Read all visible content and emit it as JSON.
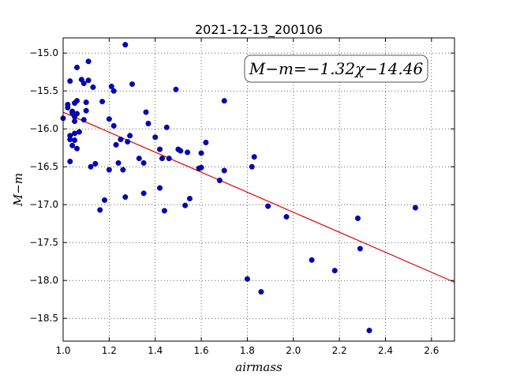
{
  "chart_data": {
    "type": "scatter",
    "title": "2021-12-13_200106",
    "xlabel": "airmass",
    "ylabel": "M−m",
    "xlim": [
      1.0,
      2.7
    ],
    "ylim": [
      -18.8,
      -14.8
    ],
    "xticks": [
      1.0,
      1.2,
      1.4,
      1.6,
      1.8,
      2.0,
      2.2,
      2.4,
      2.6
    ],
    "xtick_labels": [
      "1.0",
      "1.2",
      "1.4",
      "1.6",
      "1.8",
      "2.0",
      "2.2",
      "2.4",
      "2.6"
    ],
    "yticks": [
      -15.0,
      -15.5,
      -16.0,
      -16.5,
      -17.0,
      -17.5,
      -18.0,
      -18.5
    ],
    "ytick_labels": [
      "−15.0",
      "−15.5",
      "−16.0",
      "−16.5",
      "−17.0",
      "−17.5",
      "−18.0",
      "−18.5"
    ],
    "grid": true,
    "annotation": "M−m=−1.32χ−14.46",
    "colors": {
      "points": "#0000cc",
      "fit": "#dd0000"
    },
    "fit": {
      "slope": -1.32,
      "intercept": -14.46
    },
    "points": [
      [
        1.0,
        -15.86
      ],
      [
        1.02,
        -15.72
      ],
      [
        1.02,
        -15.68
      ],
      [
        1.03,
        -15.37
      ],
      [
        1.03,
        -16.09
      ],
      [
        1.03,
        -16.14
      ],
      [
        1.03,
        -16.43
      ],
      [
        1.04,
        -15.77
      ],
      [
        1.04,
        -15.79
      ],
      [
        1.04,
        -16.22
      ],
      [
        1.05,
        -15.66
      ],
      [
        1.05,
        -15.84
      ],
      [
        1.05,
        -15.9
      ],
      [
        1.05,
        -16.06
      ],
      [
        1.05,
        -16.15
      ],
      [
        1.06,
        -15.19
      ],
      [
        1.06,
        -15.63
      ],
      [
        1.06,
        -15.8
      ],
      [
        1.06,
        -16.26
      ],
      [
        1.07,
        -16.04
      ],
      [
        1.08,
        -15.35
      ],
      [
        1.09,
        -15.4
      ],
      [
        1.09,
        -15.88
      ],
      [
        1.1,
        -15.65
      ],
      [
        1.1,
        -15.76
      ],
      [
        1.11,
        -15.11
      ],
      [
        1.11,
        -15.36
      ],
      [
        1.12,
        -16.5
      ],
      [
        1.13,
        -15.45
      ],
      [
        1.14,
        -16.46
      ],
      [
        1.16,
        -17.07
      ],
      [
        1.17,
        -15.64
      ],
      [
        1.18,
        -16.94
      ],
      [
        1.2,
        -15.87
      ],
      [
        1.2,
        -16.54
      ],
      [
        1.21,
        -15.44
      ],
      [
        1.22,
        -15.5
      ],
      [
        1.22,
        -15.96
      ],
      [
        1.23,
        -16.21
      ],
      [
        1.24,
        -16.45
      ],
      [
        1.25,
        -16.14
      ],
      [
        1.26,
        -16.54
      ],
      [
        1.27,
        -16.9
      ],
      [
        1.27,
        -14.89
      ],
      [
        1.28,
        -16.17
      ],
      [
        1.29,
        -16.09
      ],
      [
        1.3,
        -15.41
      ],
      [
        1.33,
        -16.39
      ],
      [
        1.35,
        -16.45
      ],
      [
        1.35,
        -16.85
      ],
      [
        1.36,
        -15.78
      ],
      [
        1.37,
        -15.93
      ],
      [
        1.4,
        -16.11
      ],
      [
        1.42,
        -16.78
      ],
      [
        1.42,
        -16.27
      ],
      [
        1.43,
        -16.39
      ],
      [
        1.44,
        -17.08
      ],
      [
        1.45,
        -15.98
      ],
      [
        1.46,
        -16.39
      ],
      [
        1.49,
        -15.48
      ],
      [
        1.5,
        -16.27
      ],
      [
        1.51,
        -16.29
      ],
      [
        1.53,
        -17.01
      ],
      [
        1.54,
        -16.31
      ],
      [
        1.55,
        -16.92
      ],
      [
        1.59,
        -16.52
      ],
      [
        1.6,
        -16.51
      ],
      [
        1.6,
        -16.32
      ],
      [
        1.62,
        -16.18
      ],
      [
        1.68,
        -16.68
      ],
      [
        1.7,
        -16.55
      ],
      [
        1.7,
        -15.63
      ],
      [
        1.8,
        -17.98
      ],
      [
        1.82,
        -16.5
      ],
      [
        1.83,
        -16.37
      ],
      [
        1.86,
        -18.15
      ],
      [
        1.89,
        -17.02
      ],
      [
        1.97,
        -17.16
      ],
      [
        2.08,
        -17.73
      ],
      [
        2.18,
        -17.87
      ],
      [
        2.28,
        -17.18
      ],
      [
        2.29,
        -17.58
      ],
      [
        2.33,
        -18.66
      ],
      [
        2.53,
        -17.04
      ]
    ]
  }
}
